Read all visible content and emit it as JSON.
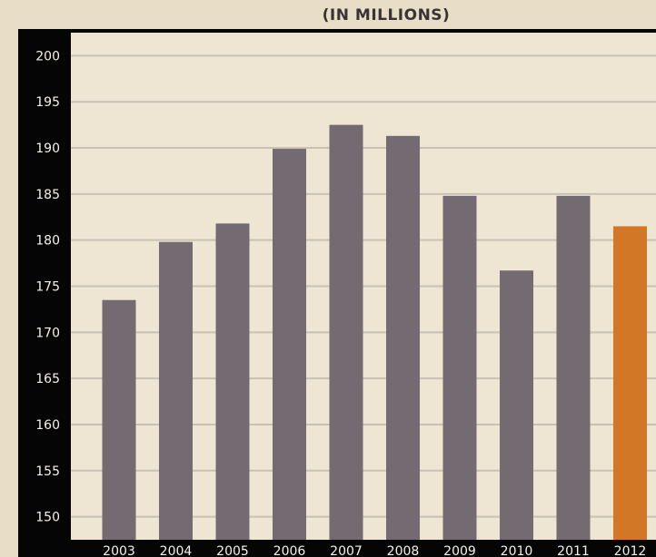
{
  "chart_data": {
    "type": "bar",
    "title": "",
    "subtitle": "(IN MILLIONS)",
    "xlabel": "",
    "ylabel": "",
    "categories": [
      "2003",
      "2004",
      "2005",
      "2006",
      "2007",
      "2008",
      "2009",
      "2010",
      "2011",
      "2012"
    ],
    "series": [
      {
        "values": [
          173.5,
          179.8,
          181.8,
          189.9,
          192.5,
          191.3,
          184.8,
          176.7,
          184.8,
          181.5
        ]
      }
    ],
    "highlight_category": "2012",
    "ylim": [
      147.5,
      202.5
    ],
    "yticks": [
      150,
      155,
      160,
      165,
      170,
      175,
      180,
      185,
      190,
      195,
      200
    ],
    "grid": true,
    "colors": {
      "bar": "#736a72",
      "highlight": "#d27726",
      "axis_band": "#050505",
      "plot_background": "#eee6d2",
      "gridline": "#c9c2b3"
    }
  }
}
